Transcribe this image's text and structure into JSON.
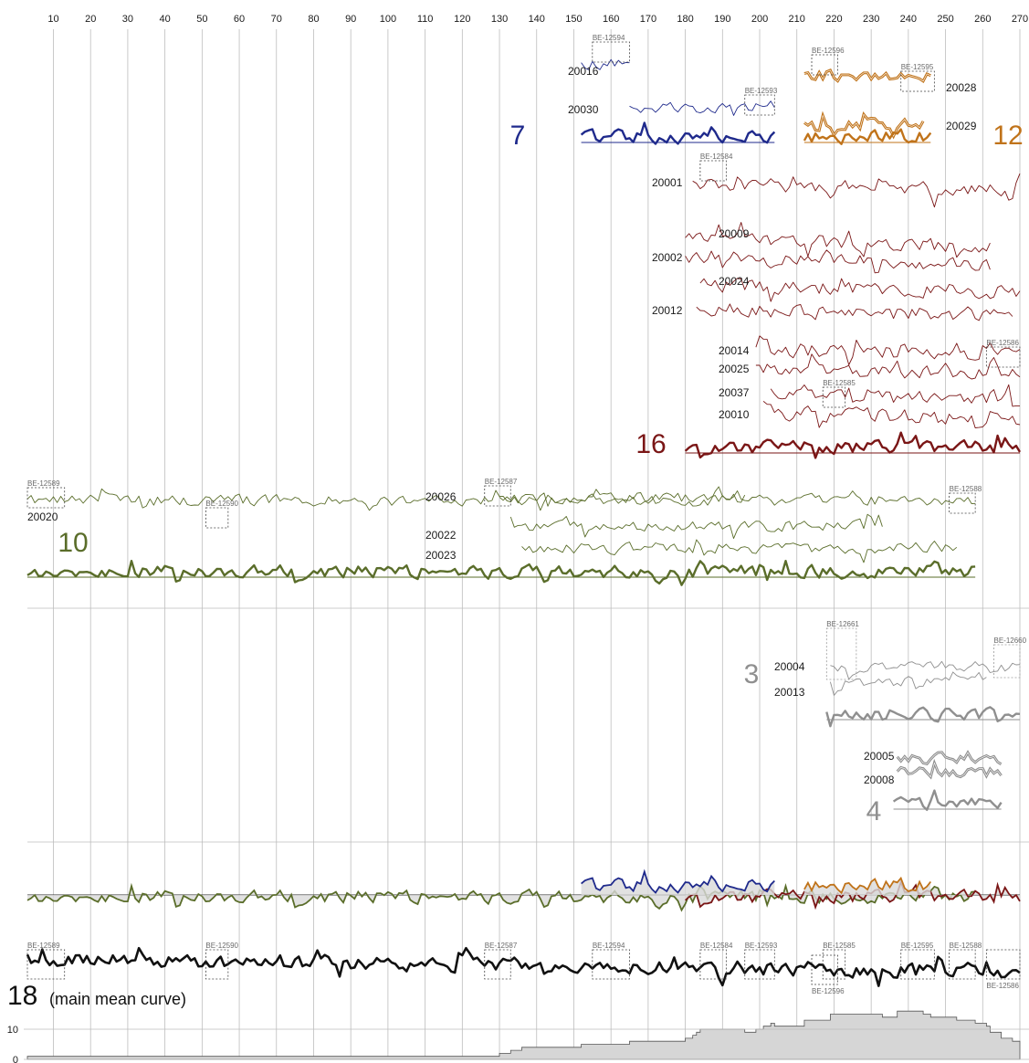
{
  "chart_data": {
    "type": "line",
    "xlim": [
      3,
      270
    ],
    "x_ticks": [
      10,
      20,
      30,
      40,
      50,
      60,
      70,
      80,
      90,
      100,
      110,
      120,
      130,
      140,
      150,
      160,
      170,
      180,
      190,
      200,
      210,
      220,
      230,
      240,
      250,
      260,
      270
    ],
    "depth_axis": {
      "ticks": [
        0,
        10
      ],
      "ylim": [
        0,
        14
      ]
    },
    "colors": {
      "blue": "#1f2a8c",
      "orange": "#c0731a",
      "red": "#7a1616",
      "green": "#5a6d2a",
      "grey": "#8f8f8f",
      "black": "#111111"
    },
    "groups": [
      {
        "label": "7",
        "color": "blue",
        "mean": {
          "start": 152,
          "end": 204
        },
        "series": [
          {
            "name": "20016",
            "start": 152,
            "end": 165
          },
          {
            "name": "20030",
            "start": 165,
            "end": 204
          }
        ]
      },
      {
        "label": "12",
        "color": "orange",
        "mean": {
          "start": 212,
          "end": 246
        },
        "series": [
          {
            "name": "20028",
            "start": 212,
            "end": 246
          },
          {
            "name": "20029",
            "start": 212,
            "end": 244
          }
        ]
      },
      {
        "label": "16",
        "color": "red",
        "mean": {
          "start": 180,
          "end": 270
        },
        "series": [
          {
            "name": "20001",
            "start": 182,
            "end": 270
          },
          {
            "name": "20009",
            "start": 180,
            "end": 262
          },
          {
            "name": "20002",
            "start": 180,
            "end": 262
          },
          {
            "name": "20024",
            "start": 184,
            "end": 270
          },
          {
            "name": "20012",
            "start": 183,
            "end": 268
          },
          {
            "name": "20014",
            "start": 199,
            "end": 270
          },
          {
            "name": "20025",
            "start": 199,
            "end": 270
          },
          {
            "name": "20037",
            "start": 203,
            "end": 270
          },
          {
            "name": "20010",
            "start": 201,
            "end": 270
          }
        ]
      },
      {
        "label": "10",
        "color": "green",
        "mean": {
          "start": 3,
          "end": 258
        },
        "series": [
          {
            "name": "20020",
            "start": 3,
            "end": 258
          },
          {
            "name": "20026",
            "start": 130,
            "end": 196
          },
          {
            "name": "20022",
            "start": 133,
            "end": 233
          },
          {
            "name": "20023",
            "start": 136,
            "end": 253
          }
        ]
      },
      {
        "label": "3",
        "color": "grey",
        "mean": {
          "start": 218,
          "end": 270
        },
        "series": [
          {
            "name": "20004",
            "start": 219,
            "end": 270
          },
          {
            "name": "20013",
            "start": 219,
            "end": 261
          }
        ]
      },
      {
        "label": "4",
        "color": "grey",
        "mean": {
          "start": 236,
          "end": 265
        },
        "series": [
          {
            "name": "20005",
            "start": 237,
            "end": 265
          },
          {
            "name": "20008",
            "start": 237,
            "end": 265
          }
        ]
      }
    ],
    "samples": [
      {
        "id": "BE-12594",
        "from": 155,
        "to": 165
      },
      {
        "id": "BE-12593",
        "from": 196,
        "to": 204
      },
      {
        "id": "BE-12596",
        "from": 214,
        "to": 221
      },
      {
        "id": "BE-12595",
        "from": 238,
        "to": 247
      },
      {
        "id": "BE-12584",
        "from": 184,
        "to": 191
      },
      {
        "id": "BE-12586",
        "from": 261,
        "to": 270
      },
      {
        "id": "BE-12585",
        "from": 217,
        "to": 223
      },
      {
        "id": "BE-12589",
        "from": 3,
        "to": 13
      },
      {
        "id": "BE-12590",
        "from": 51,
        "to": 57
      },
      {
        "id": "BE-12587",
        "from": 126,
        "to": 133
      },
      {
        "id": "BE-12588",
        "from": 251,
        "to": 258
      },
      {
        "id": "BE-12661",
        "from": 218,
        "to": 226
      },
      {
        "id": "BE-12660",
        "from": 263,
        "to": 270
      }
    ],
    "main_mean_samples": [
      "BE-12589",
      "BE-12590",
      "BE-12587",
      "BE-12594",
      "BE-12584",
      "BE-12593",
      "BE-12585",
      "BE-12596",
      "BE-12595",
      "BE-12588",
      "BE-12586"
    ],
    "main_mean": {
      "label": "18",
      "caption": "(main mean curve)",
      "start": 3,
      "end": 270
    },
    "sample_depth": [
      {
        "x": 3,
        "y": 1
      },
      {
        "x": 126,
        "y": 1
      },
      {
        "x": 130,
        "y": 2
      },
      {
        "x": 133,
        "y": 3
      },
      {
        "x": 136,
        "y": 4
      },
      {
        "x": 152,
        "y": 5
      },
      {
        "x": 165,
        "y": 6
      },
      {
        "x": 180,
        "y": 7
      },
      {
        "x": 182,
        "y": 8
      },
      {
        "x": 183,
        "y": 9
      },
      {
        "x": 184,
        "y": 10
      },
      {
        "x": 196,
        "y": 9
      },
      {
        "x": 199,
        "y": 10
      },
      {
        "x": 201,
        "y": 11
      },
      {
        "x": 203,
        "y": 12
      },
      {
        "x": 204,
        "y": 11
      },
      {
        "x": 212,
        "y": 13
      },
      {
        "x": 219,
        "y": 15
      },
      {
        "x": 233,
        "y": 14
      },
      {
        "x": 237,
        "y": 16
      },
      {
        "x": 244,
        "y": 15
      },
      {
        "x": 246,
        "y": 14
      },
      {
        "x": 253,
        "y": 13
      },
      {
        "x": 258,
        "y": 12
      },
      {
        "x": 261,
        "y": 11
      },
      {
        "x": 262,
        "y": 9
      },
      {
        "x": 265,
        "y": 7
      },
      {
        "x": 268,
        "y": 6
      },
      {
        "x": 270,
        "y": 6
      }
    ]
  }
}
